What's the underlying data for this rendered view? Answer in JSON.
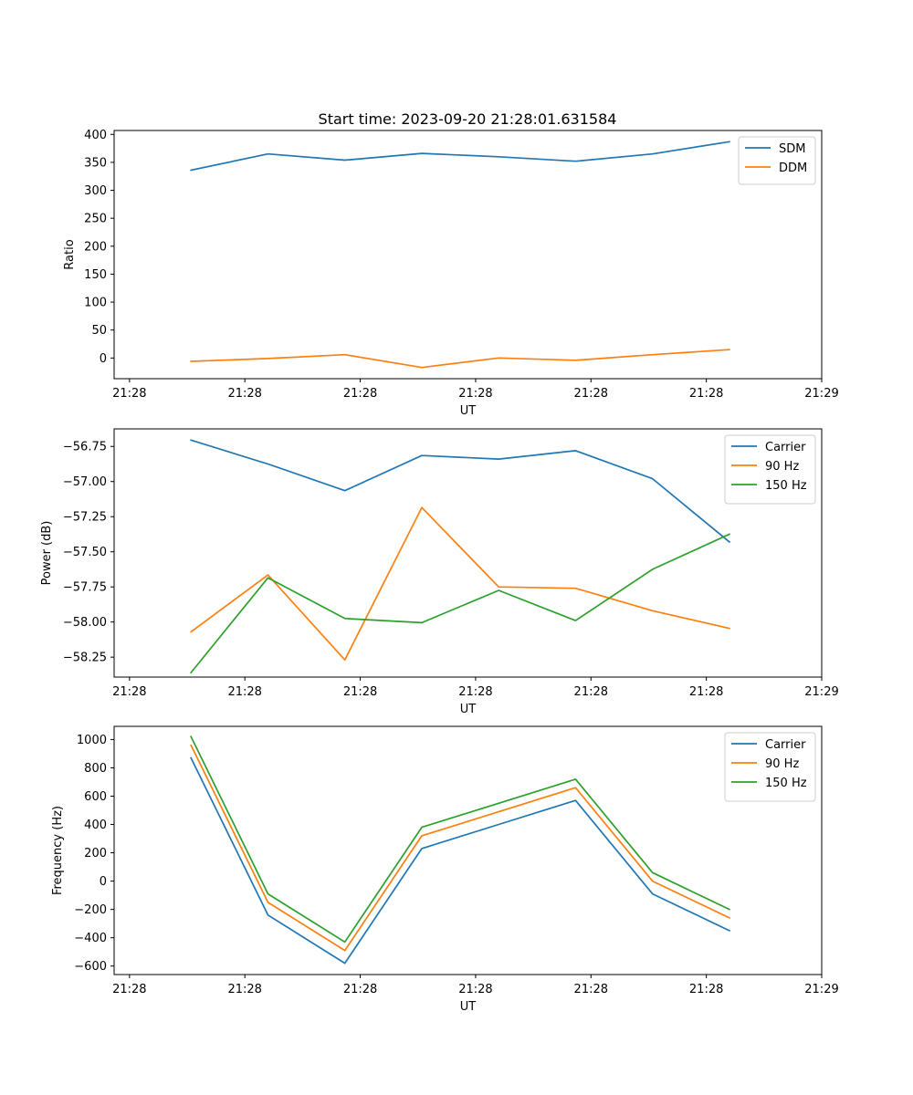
{
  "title": "Start time: 2023-09-20 21:28:01.631584",
  "chart_data": [
    {
      "type": "line",
      "xlabel": "UT",
      "ylabel": "Ratio",
      "x": [
        1,
        2,
        3,
        4,
        5,
        6,
        7,
        8
      ],
      "xlim": [
        0.0,
        9.2
      ],
      "xticks": [
        0.2,
        1.7,
        3.2,
        4.7,
        6.2,
        7.7,
        9.2
      ],
      "xtick_labels": [
        "21:28",
        "21:28",
        "21:28",
        "21:28",
        "21:28",
        "21:28",
        "21:29"
      ],
      "ylim": [
        -37,
        407
      ],
      "yticks": [
        0,
        50,
        100,
        150,
        200,
        250,
        300,
        350,
        400
      ],
      "ytick_labels": [
        "0",
        "50",
        "100",
        "150",
        "200",
        "250",
        "300",
        "350",
        "400"
      ],
      "legend_position": "top-right",
      "series": [
        {
          "name": "SDM",
          "color": "#1f77b4",
          "values": [
            336,
            365,
            354,
            366,
            360,
            352,
            365,
            387
          ]
        },
        {
          "name": "DDM",
          "color": "#ff7f0e",
          "values": [
            -6,
            -1,
            6,
            -17,
            0,
            -4,
            6,
            15
          ]
        }
      ]
    },
    {
      "type": "line",
      "xlabel": "UT",
      "ylabel": "Power (dB)",
      "x": [
        1,
        2,
        3,
        4,
        5,
        6,
        7,
        8
      ],
      "xlim": [
        0.0,
        9.2
      ],
      "xticks": [
        0.2,
        1.7,
        3.2,
        4.7,
        6.2,
        7.7,
        9.2
      ],
      "xtick_labels": [
        "21:28",
        "21:28",
        "21:28",
        "21:28",
        "21:28",
        "21:28",
        "21:29"
      ],
      "ylim": [
        -58.392,
        -56.625
      ],
      "yticks": [
        -58.25,
        -58.0,
        -57.75,
        -57.5,
        -57.25,
        -57.0,
        -56.75
      ],
      "ytick_labels": [
        "−58.25",
        "−58.00",
        "−57.75",
        "−57.50",
        "−57.25",
        "−57.00",
        "−56.75"
      ],
      "legend_position": "top-right",
      "series": [
        {
          "name": "Carrier",
          "color": "#1f77b4",
          "values": [
            -56.705,
            -56.875,
            -57.065,
            -56.815,
            -56.84,
            -56.78,
            -56.98,
            -57.43
          ]
        },
        {
          "name": "90 Hz",
          "color": "#ff7f0e",
          "values": [
            -58.07,
            -57.665,
            -58.27,
            -57.185,
            -57.75,
            -57.76,
            -57.92,
            -58.045
          ]
        },
        {
          "name": "150 Hz",
          "color": "#2ca02c",
          "values": [
            -58.36,
            -57.685,
            -57.975,
            -58.005,
            -57.775,
            -57.99,
            -57.625,
            -57.375
          ]
        }
      ]
    },
    {
      "type": "line",
      "xlabel": "UT",
      "ylabel": "Frequency (Hz)",
      "x": [
        1,
        2,
        3,
        4,
        5,
        6,
        7,
        8
      ],
      "xlim": [
        0.0,
        9.2
      ],
      "xticks": [
        0.2,
        1.7,
        3.2,
        4.7,
        6.2,
        7.7,
        9.2
      ],
      "xtick_labels": [
        "21:28",
        "21:28",
        "21:28",
        "21:28",
        "21:28",
        "21:28",
        "21:29"
      ],
      "ylim": [
        -660,
        1093
      ],
      "yticks": [
        -600,
        -400,
        -200,
        0,
        200,
        400,
        600,
        800,
        1000
      ],
      "ytick_labels": [
        "−600",
        "−400",
        "−200",
        "0",
        "200",
        "400",
        "600",
        "800",
        "1000"
      ],
      "legend_position": "top-right",
      "series": [
        {
          "name": "Carrier",
          "color": "#1f77b4",
          "values": [
            870,
            -240,
            -580,
            230,
            400,
            570,
            -90,
            -350
          ]
        },
        {
          "name": "90 Hz",
          "color": "#ff7f0e",
          "values": [
            960,
            -150,
            -490,
            320,
            490,
            660,
            0,
            -260
          ]
        },
        {
          "name": "150 Hz",
          "color": "#2ca02c",
          "values": [
            1020,
            -90,
            -430,
            380,
            550,
            720,
            60,
            -200
          ]
        }
      ]
    }
  ]
}
